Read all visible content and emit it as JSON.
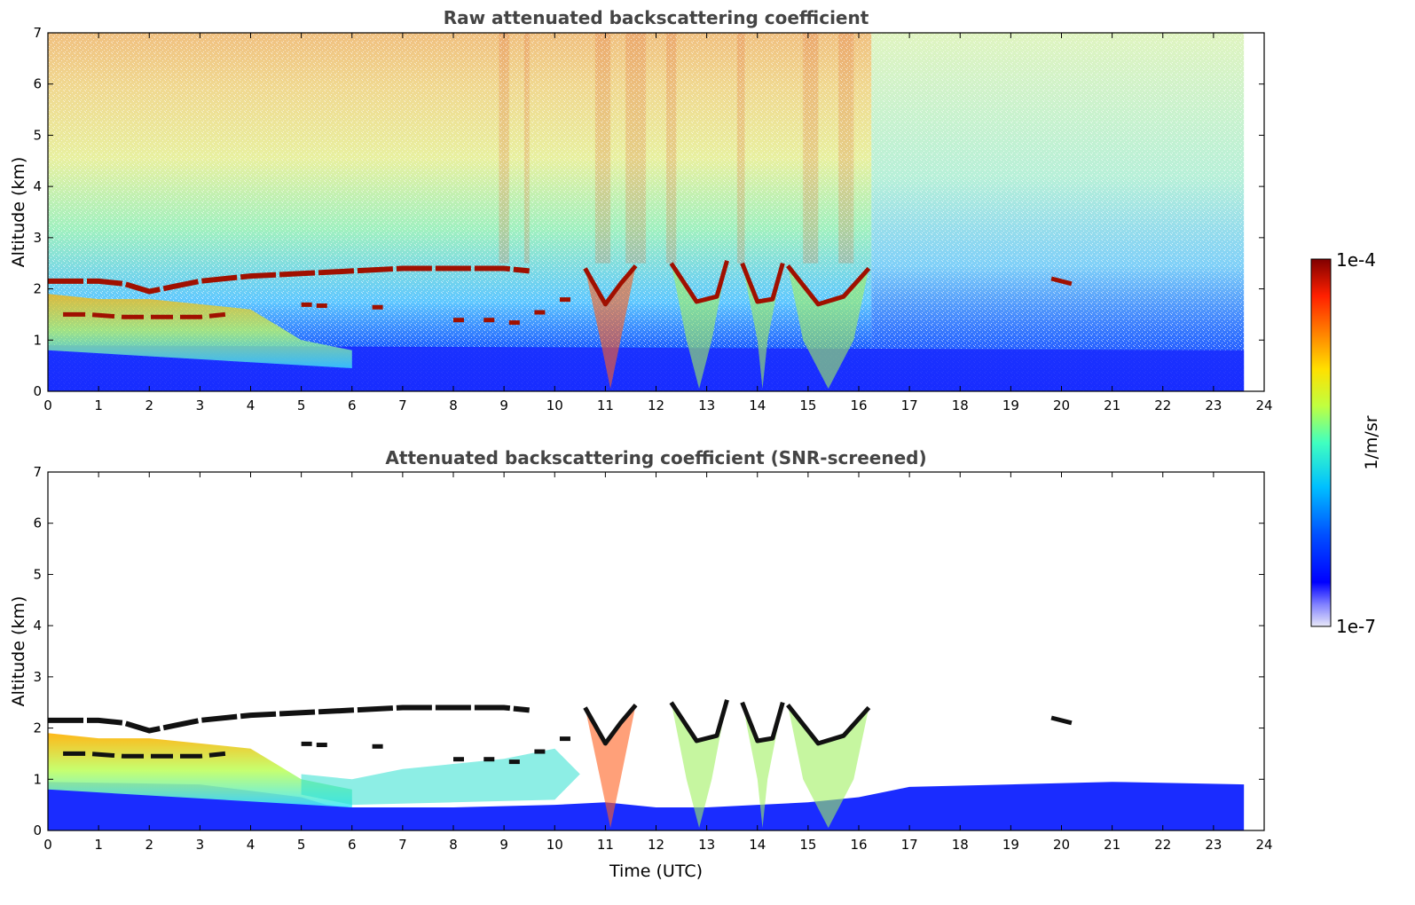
{
  "chart_data": [
    {
      "type": "heatmap",
      "title": "Raw attenuated backscattering coefficient",
      "xlabel": "",
      "ylabel": "Altitude (km)",
      "xlim": [
        0,
        24
      ],
      "ylim": [
        0,
        7
      ],
      "xticks": [
        "0",
        "1",
        "2",
        "3",
        "4",
        "5",
        "6",
        "7",
        "8",
        "9",
        "10",
        "11",
        "12",
        "13",
        "14",
        "15",
        "16",
        "17",
        "18",
        "19",
        "20",
        "21",
        "22",
        "23",
        "24"
      ],
      "yticks": [
        "0",
        "1",
        "2",
        "3",
        "4",
        "5",
        "6",
        "7"
      ],
      "data_end_hour": 23.6,
      "screened": false,
      "cloud_layer": {
        "description_hours": [
          0,
          0.5,
          1,
          1.5,
          2,
          2.5,
          3,
          4,
          5,
          6,
          7,
          8,
          9,
          9.5
        ],
        "altitude_km": [
          2.15,
          2.15,
          2.15,
          2.1,
          1.95,
          2.05,
          2.15,
          2.25,
          2.3,
          2.35,
          2.4,
          2.4,
          2.4,
          2.35
        ]
      },
      "low_cloud_layer": {
        "hours": [
          0.3,
          0.8,
          1.5,
          2,
          2.5,
          3,
          3.5
        ],
        "altitude_km": [
          1.5,
          1.5,
          1.45,
          1.45,
          1.45,
          1.45,
          1.5
        ]
      },
      "dips": [
        {
          "hours": [
            10.6,
            11.0,
            11.3,
            11.6
          ],
          "altitude_km": [
            2.4,
            1.7,
            2.1,
            2.45
          ]
        },
        {
          "hours": [
            12.3,
            12.8,
            13.2,
            13.4
          ],
          "altitude_km": [
            2.5,
            1.75,
            1.85,
            2.55
          ]
        },
        {
          "hours": [
            13.7,
            14.0,
            14.3,
            14.5
          ],
          "altitude_km": [
            2.5,
            1.75,
            1.8,
            2.5
          ]
        },
        {
          "hours": [
            14.6,
            15.2,
            15.7,
            16.2
          ],
          "altitude_km": [
            2.45,
            1.7,
            1.85,
            2.4
          ]
        },
        {
          "hours": [
            19.8,
            20.2
          ],
          "altitude_km": [
            2.2,
            2.1
          ]
        }
      ]
    },
    {
      "type": "heatmap",
      "title": "Attenuated backscattering coefficient (SNR-screened)",
      "xlabel": "Time (UTC)",
      "ylabel": "Altitude (km)",
      "xlim": [
        0,
        24
      ],
      "ylim": [
        0,
        7
      ],
      "xticks": [
        "0",
        "1",
        "2",
        "3",
        "4",
        "5",
        "6",
        "7",
        "8",
        "9",
        "10",
        "11",
        "12",
        "13",
        "14",
        "15",
        "16",
        "17",
        "18",
        "19",
        "20",
        "21",
        "22",
        "23",
        "24"
      ],
      "yticks": [
        "0",
        "1",
        "2",
        "3",
        "4",
        "5",
        "6",
        "7"
      ],
      "data_end_hour": 23.6,
      "screened": true
    }
  ],
  "colorbar": {
    "max_label": "1e-4",
    "min_label": "1e-7",
    "label": "1/m/sr",
    "colormap": [
      "#e8e8f8",
      "#0000ff",
      "#0060ff",
      "#00c0ff",
      "#40ffc0",
      "#c0ff40",
      "#ffe000",
      "#ff8000",
      "#ff2000",
      "#a00000",
      "#800000"
    ]
  }
}
